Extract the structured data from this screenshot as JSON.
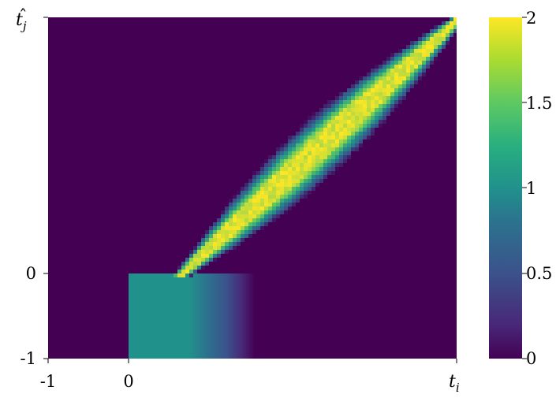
{
  "chart_data": {
    "type": "heatmap",
    "xlabel": "t_i",
    "ylabel": "t̂_j",
    "x_ticks": [
      "-1",
      "0"
    ],
    "y_ticks": [
      "0",
      "-1"
    ],
    "colorbar": {
      "ticks": [
        "2",
        "1.5",
        "1",
        "0.5",
        "0"
      ],
      "range": [
        0,
        2
      ],
      "colormap": "viridis",
      "colors": [
        "#440154",
        "#3b528b",
        "#21918c",
        "#5ec962",
        "#fde725"
      ]
    },
    "regions": [
      {
        "name": "background",
        "value": 0
      },
      {
        "name": "block",
        "x_range": [
          0,
          1.4
        ],
        "y_range": [
          -1,
          0
        ],
        "value_left": 0.95,
        "value_right": 0,
        "fade_start": 0.75
      },
      {
        "name": "band",
        "from": [
          0.6,
          0
        ],
        "to": [
          4,
          3
        ],
        "value": 2
      }
    ],
    "x_range": [
      -1,
      4
    ],
    "y_range": [
      -1,
      3
    ],
    "grid": false,
    "legend": "colorbar-right"
  }
}
